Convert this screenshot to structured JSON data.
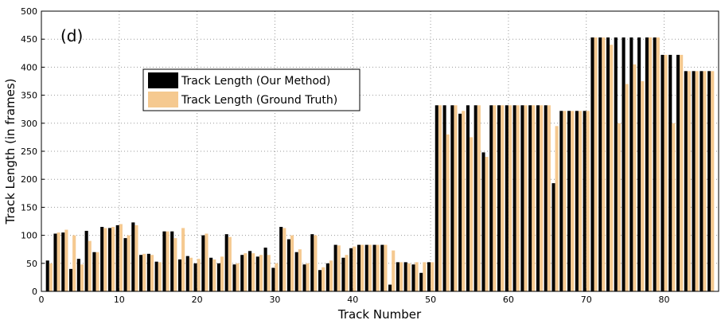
{
  "chart_data": {
    "type": "bar",
    "annotation": "(d)",
    "x_label": "Track Number",
    "y_label": "Track Length (in frames)",
    "x": [
      1,
      2,
      3,
      4,
      5,
      6,
      7,
      8,
      9,
      10,
      11,
      12,
      13,
      14,
      15,
      16,
      17,
      18,
      19,
      20,
      21,
      22,
      23,
      24,
      25,
      26,
      27,
      28,
      29,
      30,
      31,
      32,
      33,
      34,
      35,
      36,
      37,
      38,
      39,
      40,
      41,
      42,
      43,
      44,
      45,
      46,
      47,
      48,
      49,
      50,
      51,
      52,
      53,
      54,
      55,
      56,
      57,
      58,
      59,
      60,
      61,
      62,
      63,
      64,
      65,
      66,
      67,
      68,
      69,
      70,
      71,
      72,
      73,
      74,
      75,
      76,
      77,
      78,
      79,
      80,
      81,
      82,
      83,
      84,
      85,
      86
    ],
    "series": [
      {
        "name": "Track Length (Our Method)",
        "color": "#000000",
        "values": [
          55,
          103,
          105,
          40,
          58,
          108,
          70,
          115,
          113,
          118,
          95,
          123,
          65,
          67,
          53,
          107,
          107,
          57,
          63,
          50,
          100,
          60,
          50,
          102,
          48,
          65,
          72,
          62,
          78,
          42,
          115,
          93,
          70,
          48,
          102,
          38,
          50,
          83,
          60,
          77,
          83,
          83,
          83,
          83,
          12,
          52,
          52,
          48,
          33,
          52,
          332,
          332,
          332,
          317,
          332,
          332,
          248,
          332,
          332,
          332,
          332,
          332,
          332,
          332,
          332,
          193,
          322,
          322,
          322,
          322,
          453,
          453,
          453,
          453,
          453,
          453,
          453,
          453,
          453,
          422,
          422,
          422,
          393,
          393,
          393,
          393
        ]
      },
      {
        "name": "Track Length (Ground Truth)",
        "color": "#f5c990",
        "values": [
          50,
          105,
          110,
          100,
          48,
          90,
          70,
          113,
          115,
          120,
          100,
          118,
          67,
          65,
          52,
          107,
          95,
          113,
          60,
          58,
          103,
          57,
          62,
          97,
          50,
          68,
          68,
          65,
          65,
          50,
          113,
          100,
          75,
          50,
          100,
          43,
          55,
          82,
          65,
          80,
          83,
          83,
          83,
          83,
          73,
          52,
          50,
          52,
          52,
          52,
          332,
          280,
          332,
          322,
          275,
          332,
          240,
          332,
          332,
          332,
          332,
          332,
          332,
          332,
          332,
          295,
          322,
          322,
          322,
          322,
          453,
          453,
          440,
          300,
          370,
          405,
          375,
          453,
          453,
          422,
          300,
          422,
          393,
          393,
          393,
          393
        ]
      }
    ],
    "xlim": [
      0,
      87
    ],
    "xticks": [
      0,
      10,
      20,
      30,
      40,
      50,
      60,
      70,
      80
    ],
    "ylim": [
      0,
      500
    ],
    "yticks": [
      0,
      50,
      100,
      150,
      200,
      250,
      300,
      350,
      400,
      450,
      500
    ],
    "grid": true,
    "legend": "upper-left"
  }
}
